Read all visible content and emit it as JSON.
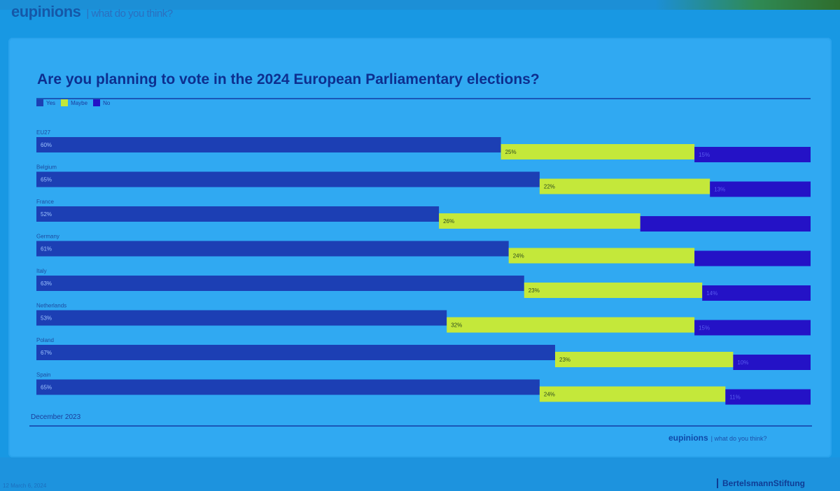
{
  "header": {
    "brand": "eupinions",
    "tagline": "| what do you think?"
  },
  "slide": {
    "date": "December 2023",
    "footer_brand": "eupinions",
    "footer_tagline": "| what do you think?",
    "publisher": "BertelsmannStiftung",
    "note": "12 March 6, 2024"
  },
  "legend": {
    "yes": "Yes",
    "maybe": "Maybe",
    "no": "No"
  },
  "colors": {
    "yes": "#1c3fb4",
    "maybe": "#c4e83a",
    "no": "#2412c6"
  },
  "chart_data": {
    "type": "bar",
    "orientation": "horizontal",
    "stacked": true,
    "title": "Are you planning to vote in the 2024 European Parliamentary elections?",
    "categories": [
      "EU27",
      "Belgium",
      "France",
      "Germany",
      "Italy",
      "Netherlands",
      "Poland",
      "Spain"
    ],
    "series": [
      {
        "name": "Yes",
        "values": [
          60,
          65,
          52,
          61,
          63,
          53,
          67,
          65
        ]
      },
      {
        "name": "Maybe",
        "values": [
          25,
          22,
          26,
          24,
          23,
          32,
          23,
          24
        ]
      },
      {
        "name": "No",
        "values": [
          15,
          13,
          22,
          15,
          14,
          15,
          10,
          11
        ]
      }
    ],
    "xlim": [
      0,
      100
    ],
    "value_labels": {
      "Yes": [
        "60%",
        "65%",
        "52%",
        "61%",
        "63%",
        "53%",
        "67%",
        "65%"
      ],
      "Maybe": [
        "25%",
        "22%",
        "26%",
        "24%",
        "23%",
        "32%",
        "23%",
        "24%"
      ],
      "No": [
        "15%",
        "13%",
        "",
        "",
        "14%",
        "15%",
        "10%",
        "11%"
      ]
    },
    "legend_position": "top-left"
  }
}
